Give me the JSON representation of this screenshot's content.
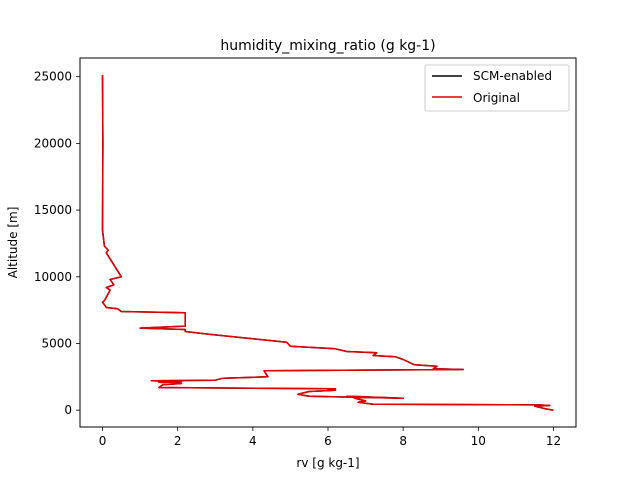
{
  "chart_data": {
    "type": "line",
    "title": "humidity_mixing_ratio (g kg-1)",
    "xlabel": "rv [g kg-1]",
    "ylabel": "Altitude [m]",
    "xlim": [
      -0.6,
      12.6
    ],
    "ylim": [
      -1260,
      26400
    ],
    "xticks": [
      0,
      2,
      4,
      6,
      8,
      10,
      12
    ],
    "yticks": [
      0,
      5000,
      10000,
      15000,
      20000,
      25000
    ],
    "grid": false,
    "legend_position": "top-right",
    "series": [
      {
        "name": "SCM-enabled",
        "color": "#000000",
        "x": [
          12.0,
          11.8,
          11.5,
          11.9,
          11.6,
          7.2,
          6.8,
          7.0,
          6.7,
          7.1,
          6.5,
          8.0,
          5.5,
          5.2,
          5.5,
          6.2,
          6.0,
          6.2,
          1.5,
          1.6,
          2.1,
          1.5,
          2.1,
          1.3,
          3.0,
          3.2,
          4.4,
          4.3,
          9.6,
          8.8,
          8.9,
          8.3,
          8.0,
          7.8,
          7.2,
          7.3,
          6.5,
          6.2,
          5.0,
          4.9,
          2.8,
          2.2,
          2.2,
          1.0,
          2.2,
          2.2,
          0.5,
          0.4,
          0.1,
          0.0,
          0.05,
          0.2,
          0.1,
          0.3,
          0.2,
          0.5,
          0.1,
          0.15,
          0.05,
          0.0,
          0.01,
          0.0
        ],
        "y": [
          0,
          100,
          300,
          350,
          400,
          450,
          600,
          700,
          900,
          1000,
          1050,
          900,
          1050,
          1200,
          1400,
          1500,
          1550,
          1600,
          1700,
          1900,
          2000,
          2100,
          2150,
          2200,
          2250,
          2400,
          2500,
          2950,
          3050,
          3100,
          3300,
          3400,
          3800,
          4000,
          4100,
          4300,
          4400,
          4600,
          4800,
          5100,
          5700,
          5900,
          6050,
          6150,
          6300,
          7300,
          7400,
          7600,
          7700,
          8100,
          8200,
          9000,
          9200,
          9400,
          9800,
          10000,
          11800,
          12000,
          12300,
          13500,
          20000,
          25100
        ]
      },
      {
        "name": "Original",
        "color": "#e00000",
        "x": [
          12.0,
          11.8,
          11.5,
          11.9,
          11.6,
          7.2,
          6.8,
          7.0,
          6.7,
          7.1,
          6.5,
          8.0,
          5.5,
          5.2,
          5.5,
          6.2,
          6.0,
          6.2,
          1.5,
          1.6,
          2.1,
          1.5,
          2.1,
          1.3,
          3.0,
          3.2,
          4.4,
          4.3,
          9.6,
          8.8,
          8.9,
          8.3,
          8.0,
          7.8,
          7.2,
          7.3,
          6.5,
          6.2,
          5.0,
          4.9,
          2.8,
          2.2,
          2.2,
          1.0,
          2.2,
          2.2,
          0.5,
          0.4,
          0.1,
          0.0,
          0.05,
          0.2,
          0.1,
          0.3,
          0.2,
          0.5,
          0.1,
          0.15,
          0.05,
          0.0,
          0.01,
          0.0
        ],
        "y": [
          0,
          100,
          300,
          350,
          400,
          450,
          600,
          700,
          900,
          1000,
          1050,
          900,
          1050,
          1200,
          1400,
          1500,
          1550,
          1600,
          1700,
          1900,
          2000,
          2100,
          2150,
          2200,
          2250,
          2400,
          2500,
          2950,
          3050,
          3100,
          3300,
          3400,
          3800,
          4000,
          4100,
          4300,
          4400,
          4600,
          4800,
          5100,
          5700,
          5900,
          6050,
          6150,
          6300,
          7300,
          7400,
          7600,
          7700,
          8100,
          8200,
          9000,
          9200,
          9400,
          9800,
          10000,
          11800,
          12000,
          12300,
          13500,
          20000,
          25100
        ]
      }
    ]
  }
}
